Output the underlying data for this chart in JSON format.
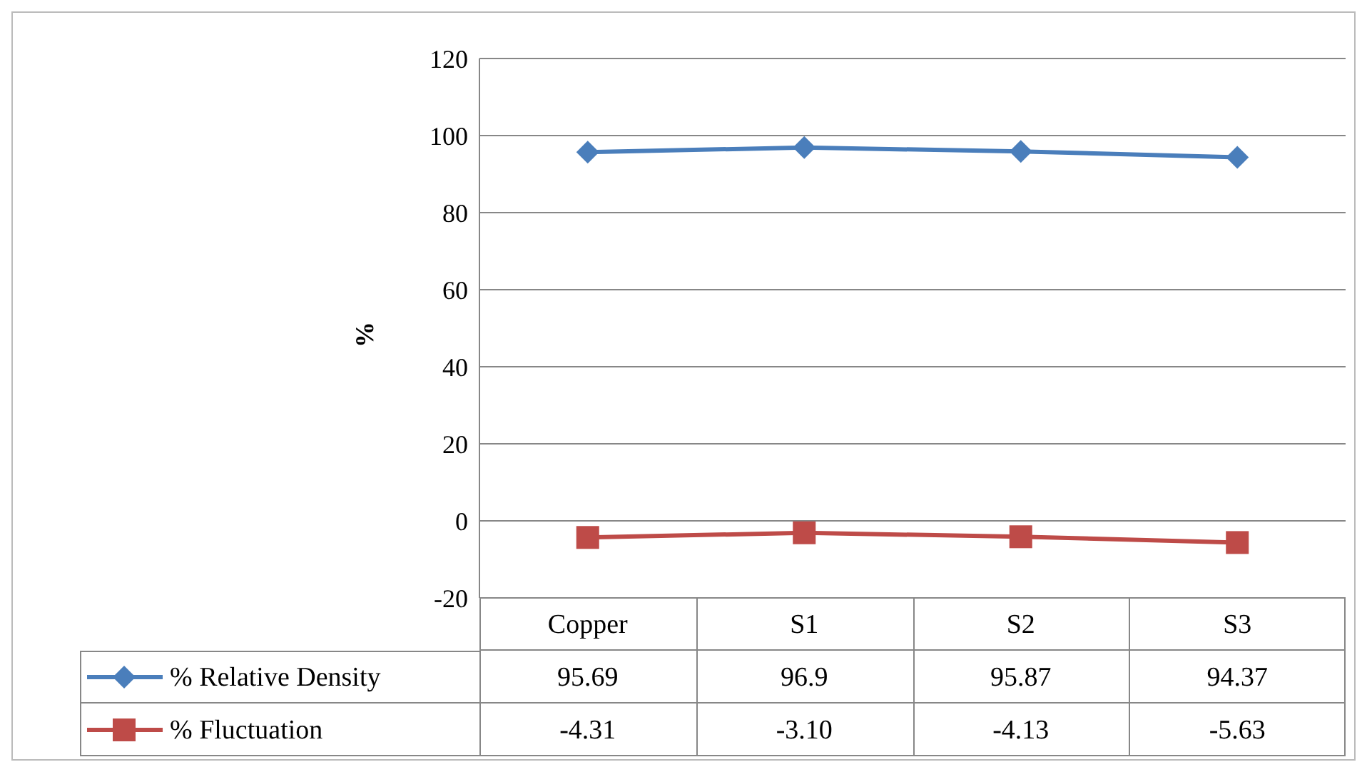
{
  "chart_data": {
    "type": "line",
    "ylabel": "%",
    "categories": [
      "Copper",
      "S1",
      "S2",
      "S3"
    ],
    "series": [
      {
        "name": "% Relative Density",
        "color": "#4a7ebb",
        "marker": "diamond",
        "values": [
          95.69,
          96.9,
          95.87,
          94.37
        ],
        "value_labels": [
          "95.69",
          "96.9",
          "95.87",
          "94.37"
        ]
      },
      {
        "name": "% Fluctuation",
        "color": "#be4b48",
        "marker": "square",
        "values": [
          -4.31,
          -3.1,
          -4.13,
          -5.63
        ],
        "value_labels": [
          "-4.31",
          "-3.10",
          "-4.13",
          "-5.63"
        ]
      }
    ],
    "ylim": [
      -20,
      120
    ],
    "yticks": [
      -20,
      0,
      20,
      40,
      60,
      80,
      100,
      120
    ],
    "grid": "y",
    "legend": "bottom"
  }
}
